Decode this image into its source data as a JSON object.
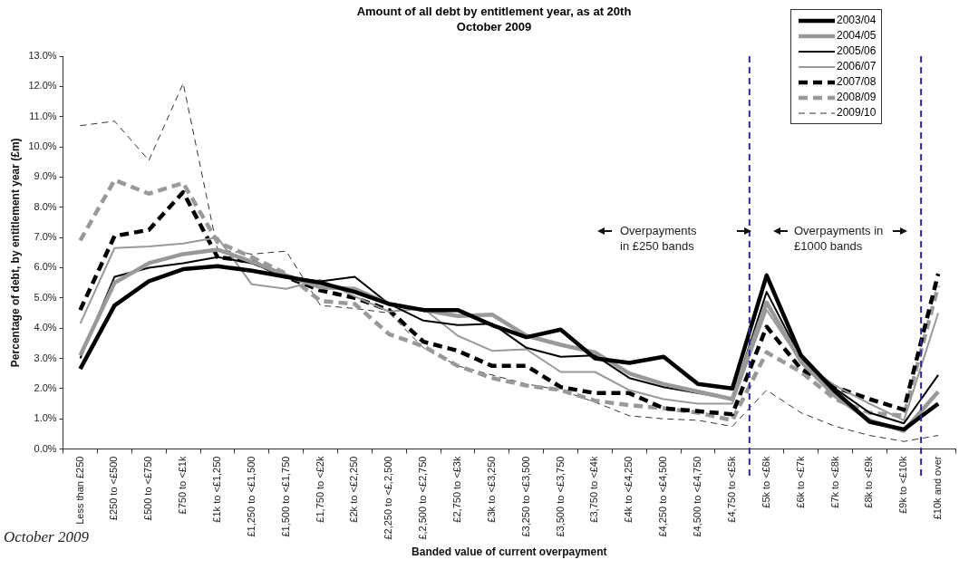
{
  "chart_data": {
    "type": "line",
    "title": "Amount of all debt by entitlement year, as at 20th October 2009",
    "xlabel": "Banded value of current overpayment",
    "ylabel": "Percentage of debt, by entitlement year (£m)",
    "categories": [
      "Less than £250",
      "£250 to <£500",
      "£500 to <£750",
      "£750 to <£1k",
      "£1k to <£1,250",
      "£1,250 to <£1,500",
      "£1,500 to <£1,750",
      "£1,750 to <£2k",
      "£2k to <£2,250",
      "£2,250 to <£,2,500",
      "£,2,500 to <£2,750",
      "£2,750 to <£3k",
      "£3k to <£3,250",
      "£3,250 to <£3,500",
      "£3,500 to <£3,750",
      "£3,750 to <£4k",
      "£4k to <£4,250",
      "£4,250 to <£4,500",
      "£4,500 to <£4,750",
      "£4,750 to <£5k",
      "£5k to <£6k",
      "£6k to <£7k",
      "£7k to <£8k",
      "£8k to <£9k",
      "£9k to <£10k",
      "£10k and over"
    ],
    "series": [
      {
        "name": "2003/04",
        "color": "#000000",
        "line_style": "solid",
        "values": [
          2.65,
          4.75,
          5.55,
          5.95,
          6.05,
          5.9,
          5.7,
          5.5,
          5.2,
          4.8,
          4.6,
          4.6,
          4.1,
          3.7,
          3.95,
          3.0,
          2.85,
          3.05,
          2.15,
          2.0,
          5.75,
          3.1,
          1.9,
          0.9,
          0.65,
          1.5
        ]
      },
      {
        "name": "2004/05",
        "color": "#999999",
        "line_style": "solid",
        "values": [
          3.1,
          5.5,
          6.15,
          6.45,
          6.6,
          6.2,
          5.75,
          5.35,
          5.3,
          4.8,
          4.6,
          4.4,
          4.45,
          3.75,
          3.45,
          3.2,
          2.5,
          2.15,
          1.9,
          1.65,
          4.85,
          2.9,
          1.75,
          0.95,
          0.6,
          1.9
        ]
      },
      {
        "name": "2005/06",
        "color": "#000000",
        "line_style": "solid",
        "values": [
          3.0,
          5.7,
          6.0,
          6.15,
          6.35,
          6.15,
          5.7,
          5.55,
          5.7,
          4.8,
          4.25,
          4.1,
          4.15,
          3.35,
          3.05,
          3.1,
          2.35,
          2.05,
          1.85,
          1.65,
          5.2,
          3.0,
          2.0,
          1.2,
          0.85,
          2.45
        ]
      },
      {
        "name": "2006/07",
        "color": "#999999",
        "line_style": "solid",
        "values": [
          4.15,
          6.65,
          6.7,
          6.8,
          7.0,
          5.45,
          5.3,
          5.6,
          5.05,
          4.55,
          4.65,
          3.75,
          3.25,
          3.3,
          2.55,
          2.55,
          1.95,
          1.65,
          1.5,
          1.5,
          4.6,
          2.9,
          2.1,
          1.5,
          0.95,
          4.5
        ]
      },
      {
        "name": "2007/08",
        "color": "#000000",
        "line_style": "dashed",
        "values": [
          4.6,
          7.05,
          7.25,
          8.5,
          6.35,
          6.2,
          5.7,
          5.25,
          5.0,
          4.6,
          3.55,
          3.25,
          2.75,
          2.75,
          2.05,
          1.85,
          1.85,
          1.35,
          1.25,
          1.15,
          4.05,
          2.65,
          2.05,
          1.65,
          1.3,
          5.8
        ]
      },
      {
        "name": "2008/09",
        "color": "#999999",
        "line_style": "dashed",
        "values": [
          6.9,
          8.9,
          8.45,
          8.8,
          6.85,
          6.35,
          5.8,
          4.9,
          4.8,
          3.8,
          3.4,
          2.75,
          2.35,
          2.1,
          1.95,
          1.6,
          1.45,
          1.35,
          1.2,
          0.95,
          3.2,
          2.55,
          1.65,
          1.2,
          1.1,
          5.4
        ]
      },
      {
        "name": "2009/10",
        "color": "#333333",
        "line_style": "dashed",
        "values": [
          10.7,
          10.85,
          9.55,
          12.1,
          6.6,
          6.45,
          6.55,
          4.75,
          4.65,
          4.5,
          3.35,
          2.75,
          2.45,
          2.15,
          1.95,
          1.55,
          1.1,
          1.0,
          0.95,
          0.75,
          1.95,
          1.2,
          0.75,
          0.45,
          0.25,
          0.45
        ]
      }
    ],
    "ylim": [
      0,
      13
    ],
    "yticks": [
      {
        "value": 0,
        "label": "0.0%"
      },
      {
        "value": 1,
        "label": "1.0%"
      },
      {
        "value": 2,
        "label": "2.0%"
      },
      {
        "value": 3,
        "label": "3.0%"
      },
      {
        "value": 4,
        "label": "4.0%"
      },
      {
        "value": 5,
        "label": "5.0%"
      },
      {
        "value": 6,
        "label": "6.0%"
      },
      {
        "value": 7,
        "label": "7.0%"
      },
      {
        "value": 8,
        "label": "8.0%"
      },
      {
        "value": 9,
        "label": "9.0%"
      },
      {
        "value": 10,
        "label": "10.0%"
      },
      {
        "value": 11,
        "label": "11.0%"
      },
      {
        "value": 12,
        "label": "12.0%"
      },
      {
        "value": 13,
        "label": "13.0%"
      }
    ],
    "annotations": [
      "Overpayments in £250 bands",
      "Overpayments in £1000 bands",
      "October 2009"
    ],
    "grid": false,
    "legend": "top right",
    "marker": "none"
  }
}
